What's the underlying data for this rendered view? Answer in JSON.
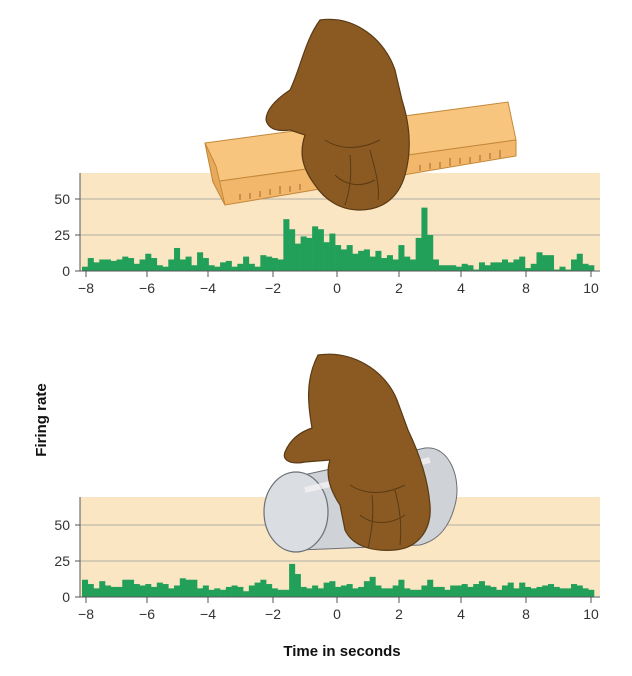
{
  "figure": {
    "ylabel": "Firing rate",
    "xlabel": "Time in seconds"
  },
  "chart_data": [
    {
      "type": "bar",
      "panel": "top",
      "object": "ruler",
      "yticks": [
        "50",
        "25",
        "0"
      ],
      "ytick_values": [
        50,
        25,
        0
      ],
      "xticks": [
        "−8",
        "−6",
        "−4",
        "−2",
        "0",
        "2",
        "4",
        "8",
        "10"
      ],
      "ylim": [
        0,
        75
      ],
      "grid": "horizontal lines at 25 and 50",
      "bar_color": "#22a05a",
      "panel_color": "#fbe6c4",
      "values": [
        3,
        9,
        6,
        8,
        8,
        7,
        8,
        10,
        9,
        5,
        8,
        12,
        9,
        4,
        3,
        8,
        16,
        8,
        10,
        4,
        13,
        9,
        4,
        3,
        6,
        7,
        3,
        5,
        10,
        5,
        3,
        11,
        10,
        9,
        8,
        36,
        29,
        19,
        24,
        23,
        31,
        29,
        20,
        26,
        18,
        15,
        18,
        12,
        14,
        15,
        10,
        14,
        9,
        11,
        8,
        18,
        10,
        8,
        23,
        44,
        25,
        8,
        4,
        4,
        4,
        3,
        5,
        4,
        1,
        6,
        4,
        6,
        6,
        8,
        6,
        8,
        10,
        2,
        5,
        13,
        11,
        11,
        1,
        3,
        1,
        8,
        12,
        5,
        4
      ]
    },
    {
      "type": "bar",
      "panel": "bottom",
      "object": "cylinder",
      "yticks": [
        "50",
        "25",
        "0"
      ],
      "ytick_values": [
        50,
        25,
        0
      ],
      "xticks": [
        "−8",
        "−6",
        "−4",
        "−2",
        "0",
        "2",
        "4",
        "8",
        "10"
      ],
      "ylim": [
        0,
        75
      ],
      "grid": "horizontal lines at 25 and 50",
      "bar_color": "#22a05a",
      "panel_color": "#fbe6c4",
      "values": [
        12,
        9,
        6,
        11,
        8,
        7,
        7,
        12,
        12,
        9,
        8,
        9,
        7,
        10,
        9,
        6,
        8,
        13,
        12,
        12,
        6,
        8,
        5,
        6,
        5,
        7,
        8,
        7,
        4,
        8,
        10,
        12,
        9,
        6,
        5,
        5,
        23,
        16,
        7,
        6,
        8,
        6,
        10,
        11,
        7,
        8,
        9,
        6,
        7,
        11,
        14,
        8,
        6,
        6,
        8,
        12,
        6,
        5,
        5,
        8,
        12,
        7,
        7,
        5,
        8,
        8,
        9,
        7,
        9,
        11,
        8,
        7,
        5,
        8,
        10,
        6,
        10,
        7,
        6,
        7,
        8,
        9,
        7,
        6,
        6,
        9,
        8,
        6,
        5
      ]
    }
  ]
}
